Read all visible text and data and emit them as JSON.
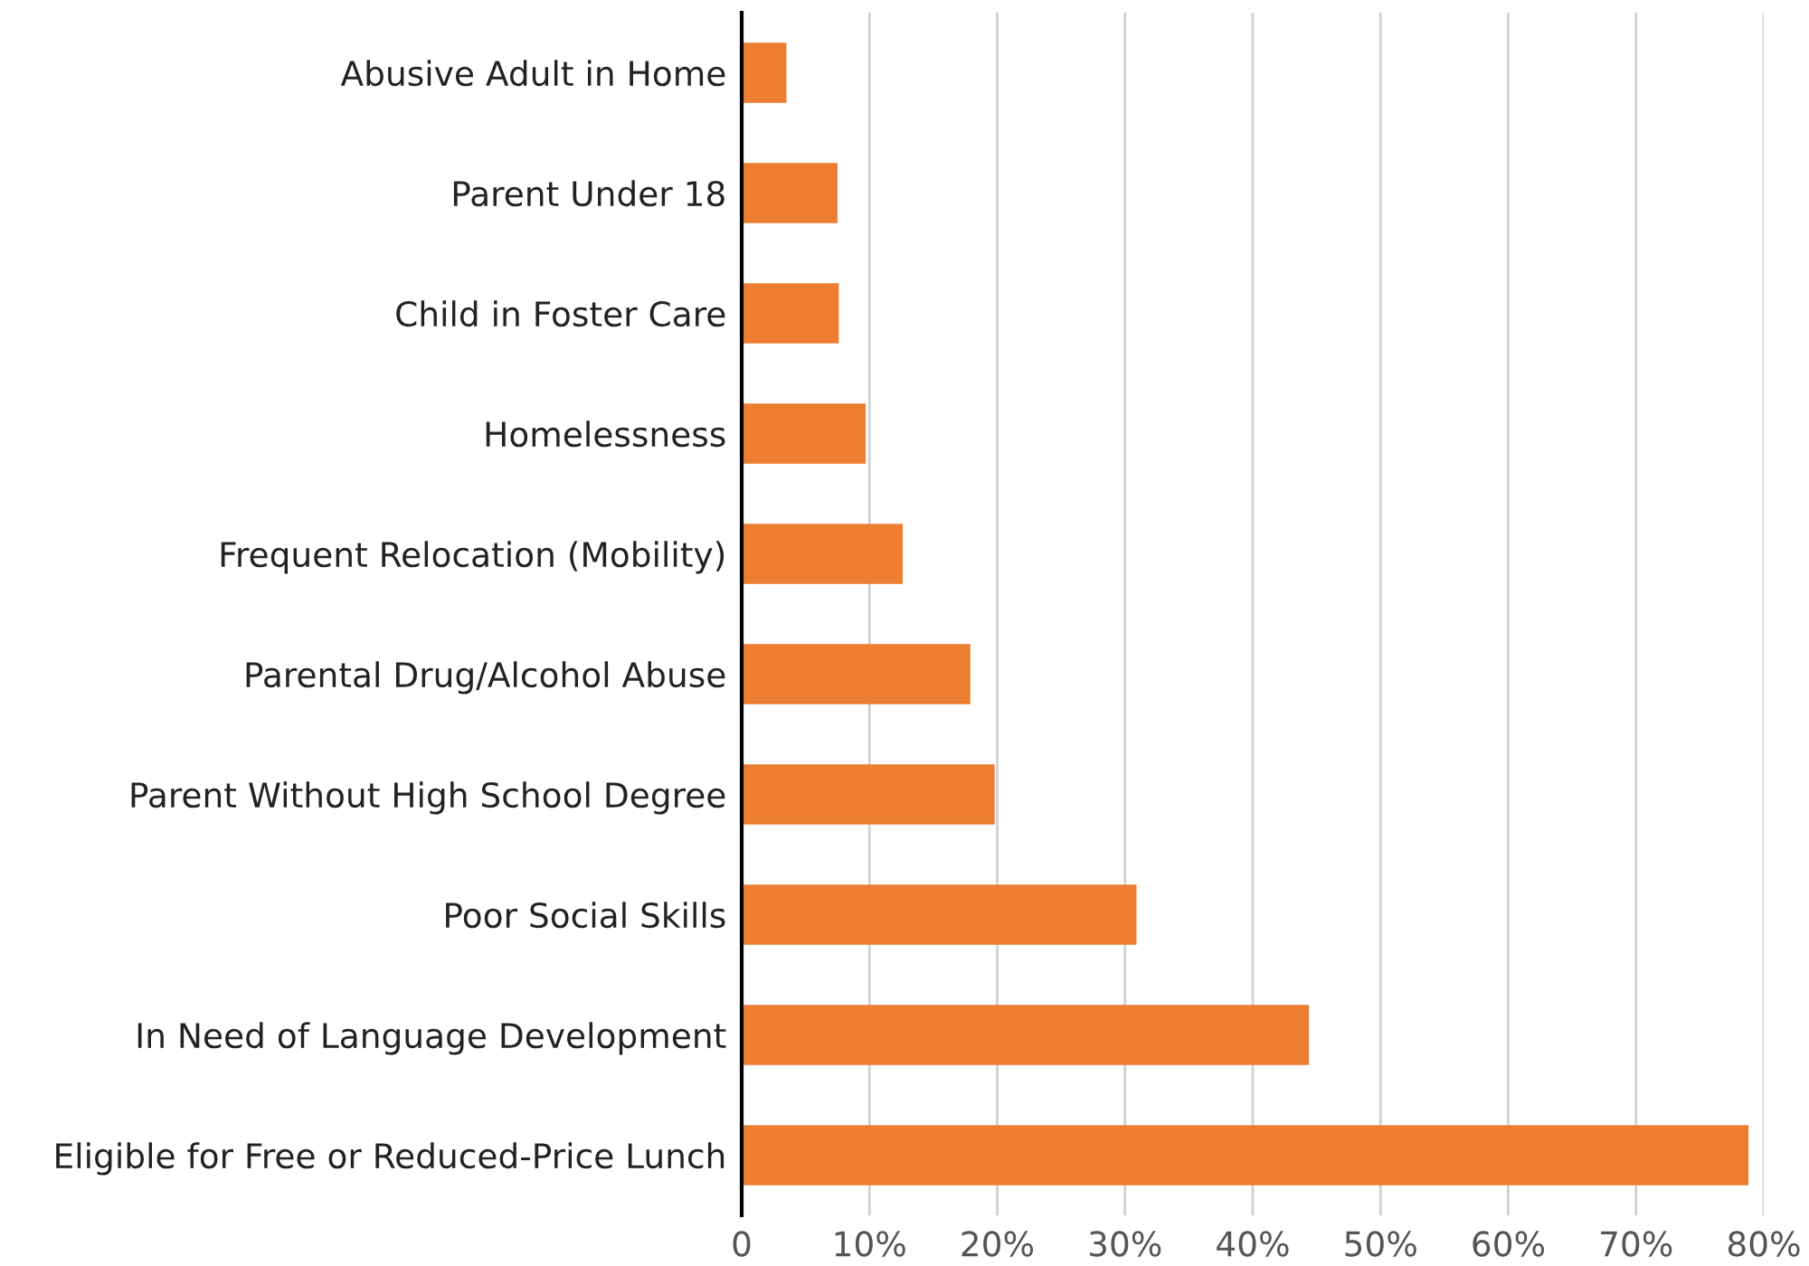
{
  "chart_data": {
    "type": "bar",
    "orientation": "horizontal",
    "categories": [
      "Abusive Adult in Home",
      "Parent Under 18",
      "Child in Foster Care",
      "Homelessness",
      "Frequent Relocation (Mobility)",
      "Parental Drug/Alcohol Abuse",
      "Parent Without High School Degree",
      "Poor Social Skills",
      "In Need of Language Development",
      "Eligible for Free or Reduced-Price Lunch"
    ],
    "values": [
      3.5,
      7.5,
      7.6,
      9.7,
      12.6,
      17.9,
      19.8,
      30.9,
      44.4,
      78.8
    ],
    "color": "#ed7d31",
    "xlim": [
      0,
      80
    ],
    "xticks": [
      {
        "value": 0,
        "label": "0"
      },
      {
        "value": 10,
        "label": "10%"
      },
      {
        "value": 20,
        "label": "20%"
      },
      {
        "value": 30,
        "label": "30%"
      },
      {
        "value": 40,
        "label": "40%"
      },
      {
        "value": 50,
        "label": "50%"
      },
      {
        "value": 60,
        "label": "60%"
      },
      {
        "value": 70,
        "label": "70%"
      },
      {
        "value": 80,
        "label": "80%"
      }
    ],
    "grid": "x",
    "legend": false
  }
}
